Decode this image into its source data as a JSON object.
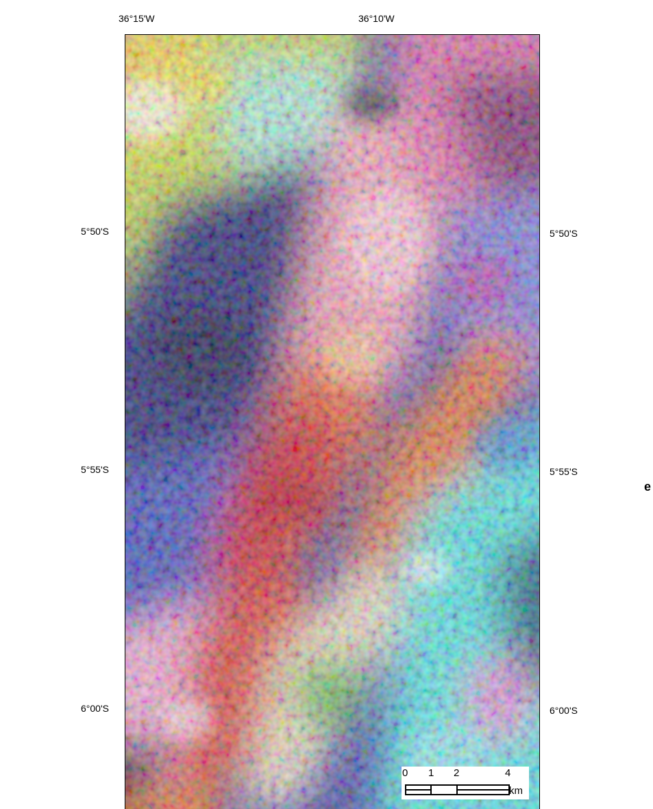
{
  "longitude_labels": [
    "36°15'W",
    "36°10'W"
  ],
  "latitude_labels_left": [
    "5°50'S",
    "5°55'S",
    "6°00'S"
  ],
  "latitude_labels_right": [
    "5°50'S",
    "5°55'S",
    "6°00'S"
  ],
  "scale_bar": {
    "ticks": [
      "0",
      "1",
      "2",
      "4"
    ],
    "unit": "km"
  },
  "edge_glyph": "e",
  "colors": {
    "frame": "#000000",
    "background": "#ffffff"
  }
}
